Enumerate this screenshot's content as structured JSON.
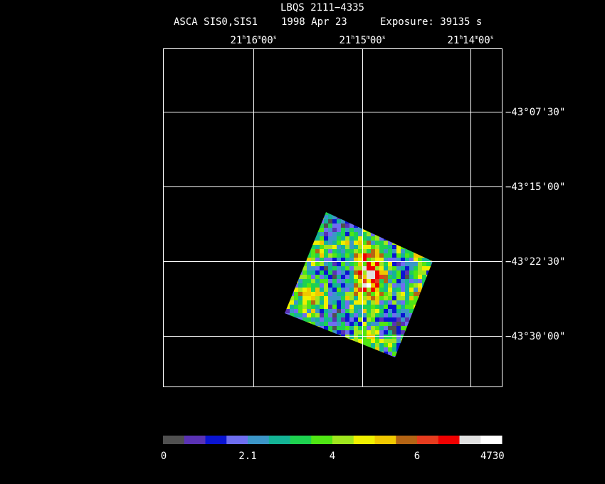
{
  "header": {
    "title": "LBQS 2111−4335",
    "instrument": "ASCA SIS0,SIS1",
    "date": "1998 Apr 23",
    "exposure": "Exposure: 39135 s"
  },
  "ra_labels": [
    [
      "21",
      "h",
      "16",
      "m",
      "00",
      "s"
    ],
    [
      "21",
      "h",
      "15",
      "m",
      "00",
      "s"
    ],
    [
      "21",
      "h",
      "14",
      "m",
      "00",
      "s"
    ]
  ],
  "dec_labels": [
    "−43°07'30\"",
    "−43°15'00\"",
    "−43°22'30\"",
    "−43°30'00\""
  ],
  "colorbar": {
    "colors": [
      "#505050",
      "#5a32b4",
      "#0a14d2",
      "#6e6ef0",
      "#3c96c8",
      "#14b496",
      "#1ed250",
      "#50e614",
      "#a0e61e",
      "#f0f000",
      "#f0c800",
      "#b46414",
      "#e63c1e",
      "#f00000",
      "#e0e0e0",
      "#ffffff"
    ],
    "labels": [
      "0",
      "2.1",
      "4",
      "6",
      "4730"
    ]
  }
}
